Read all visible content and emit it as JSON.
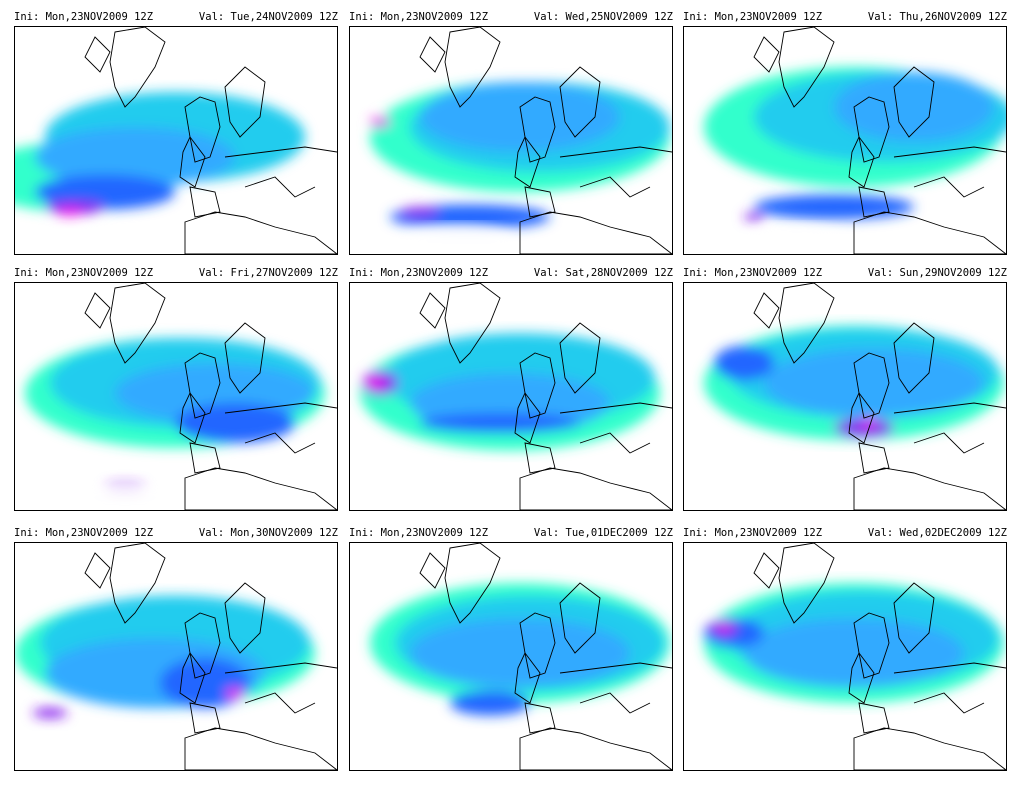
{
  "panels": [
    {
      "ini": "Ini: Mon,23NOV2009 12Z",
      "val": "Val: Tue,24NOV2009 12Z"
    },
    {
      "ini": "Ini: Mon,23NOV2009 12Z",
      "val": "Val: Wed,25NOV2009 12Z"
    },
    {
      "ini": "Ini: Mon,23NOV2009 12Z",
      "val": "Val: Thu,26NOV2009 12Z"
    },
    {
      "ini": "Ini: Mon,23NOV2009 12Z",
      "val": "Val: Fri,27NOV2009 12Z"
    },
    {
      "ini": "Ini: Mon,23NOV2009 12Z",
      "val": "Val: Sat,28NOV2009 12Z"
    },
    {
      "ini": "Ini: Mon,23NOV2009 12Z",
      "val": "Val: Sun,29NOV2009 12Z"
    },
    {
      "ini": "Ini: Mon,23NOV2009 12Z",
      "val": "Val: Mon,30NOV2009 12Z"
    },
    {
      "ini": "Ini: Mon,23NOV2009 12Z",
      "val": "Val: Tue,01DEC2009 12Z"
    },
    {
      "ini": "Ini: Mon,23NOV2009 12Z",
      "val": "Val: Wed,02DEC2009 12Z"
    }
  ],
  "colors": {
    "background": "#ffffff",
    "shade_light": "#33ffcc",
    "shade_cyan": "#22ccee",
    "shade_sky": "#33aaff",
    "shade_blue": "#2266ff",
    "shade_purple": "#8822ee",
    "shade_magenta": "#ee22ee",
    "coastline": "#000000"
  }
}
